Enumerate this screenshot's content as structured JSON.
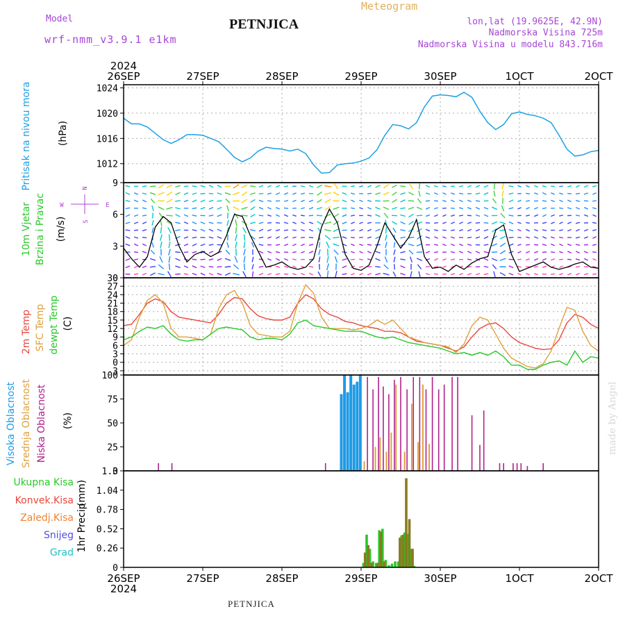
{
  "header": {
    "model_label": "Model",
    "model_name": "wrf-nmm_v3.9.1 e1km",
    "title": "PETNJICA",
    "subtitle": "Meteogram",
    "coords": "lon,lat (19.9625E, 42.9N)",
    "elevation": "Nadmorska Visina 725m",
    "model_elevation": "Nadmorska Visina u modelu 843.716m",
    "year": "2024"
  },
  "footer": {
    "station": "PETNJICA"
  },
  "credit": "made by Angel",
  "colors": {
    "pressure": "#1ca0e6",
    "temp2m": "#e8463c",
    "sfc": "#e0a03c",
    "dewpt": "#28c828",
    "high": "#1e9be6",
    "mid": "#e0a03c",
    "low": "#b0208c",
    "total_precip": "#28c828",
    "conv_precip": "#e8463c",
    "frozen": "#f08030",
    "snow": "#5050e0",
    "hail": "#20c0c0",
    "label_magenta": "#a646d6",
    "wind_label": "#b040d0"
  },
  "chart_data": [
    {
      "type": "line",
      "panel": "pressure",
      "ylabel": "Pritisak na nivou mora",
      "unit": "(hPa)",
      "ylim": [
        1009,
        1024.5
      ],
      "yticks": [
        1012,
        1016,
        1020,
        1024
      ],
      "x_days": [
        "26SEP",
        "27SEP",
        "28SEP",
        "29SEP",
        "30SEP",
        "1OCT",
        "2OCT"
      ],
      "x_tick_labels": [
        "26SEP",
        "27SEP",
        "28SEP",
        "29SEP",
        "30SEP",
        "1OCT",
        "2OCT"
      ],
      "series": [
        {
          "color_key": "pressure",
          "x": [
            0,
            0.1,
            0.2,
            0.3,
            0.4,
            0.5,
            0.6,
            0.7,
            0.8,
            0.9,
            1.0,
            1.1,
            1.2,
            1.3,
            1.4,
            1.5,
            1.6,
            1.7,
            1.8,
            1.9,
            2.0,
            2.1,
            2.2,
            2.3,
            2.4,
            2.5,
            2.6,
            2.7,
            2.8,
            2.9,
            3.0,
            3.1,
            3.2,
            3.3,
            3.4,
            3.5,
            3.6,
            3.7,
            3.8,
            3.9,
            4.0,
            4.1,
            4.2,
            4.3,
            4.4,
            4.5,
            4.6,
            4.7,
            4.8,
            4.9,
            5.0,
            5.1,
            5.2,
            5.3,
            5.4,
            5.5,
            5.6,
            5.7,
            5.8,
            5.9,
            6.0
          ],
          "values": [
            1019.2,
            1018.3,
            1018.3,
            1017.8,
            1016.8,
            1015.8,
            1015.2,
            1015.8,
            1016.6,
            1016.6,
            1016.5,
            1016.0,
            1015.5,
            1014.3,
            1013.0,
            1012.3,
            1012.9,
            1014.0,
            1014.6,
            1014.4,
            1014.3,
            1014.0,
            1014.3,
            1013.6,
            1011.8,
            1010.5,
            1010.6,
            1011.8,
            1012.0,
            1012.1,
            1012.4,
            1012.9,
            1014.2,
            1016.5,
            1018.2,
            1018.0,
            1017.5,
            1018.5,
            1021.0,
            1022.7,
            1022.9,
            1022.8,
            1022.6,
            1023.3,
            1022.5,
            1020.3,
            1018.5,
            1017.4,
            1018.2,
            1019.9,
            1020.2,
            1019.8,
            1019.6,
            1019.2,
            1018.5,
            1016.5,
            1014.3,
            1013.2,
            1013.4,
            1013.9,
            1014.1
          ]
        }
      ]
    },
    {
      "type": "line",
      "panel": "wind",
      "ylabel": [
        "10m Vjetar",
        "Brzina i Pravac"
      ],
      "unit": "(m/s)",
      "ylim": [
        0,
        9
      ],
      "yticks": [
        0,
        3,
        6,
        9
      ],
      "compass": {
        "n": "N",
        "s": "S",
        "e": "E",
        "w": "W"
      },
      "series": [
        {
          "color_key": "wind_speed",
          "x": [
            0,
            0.1,
            0.2,
            0.3,
            0.4,
            0.5,
            0.6,
            0.7,
            0.8,
            0.9,
            1.0,
            1.1,
            1.2,
            1.3,
            1.4,
            1.5,
            1.6,
            1.7,
            1.8,
            1.9,
            2.0,
            2.1,
            2.2,
            2.3,
            2.4,
            2.5,
            2.6,
            2.7,
            2.8,
            2.9,
            3.0,
            3.1,
            3.2,
            3.3,
            3.4,
            3.5,
            3.6,
            3.7,
            3.8,
            3.9,
            4.0,
            4.1,
            4.2,
            4.3,
            4.4,
            4.5,
            4.6,
            4.7,
            4.8,
            4.9,
            5.0,
            5.1,
            5.2,
            5.3,
            5.4,
            5.5,
            5.6,
            5.7,
            5.8,
            5.9,
            6.0
          ],
          "values": [
            2.8,
            1.8,
            1.0,
            2.0,
            4.8,
            5.8,
            5.2,
            3.0,
            1.5,
            2.2,
            2.5,
            2.0,
            2.4,
            4.0,
            6.0,
            5.8,
            4.0,
            2.5,
            1.0,
            1.2,
            1.5,
            1.0,
            0.8,
            1.0,
            1.8,
            4.8,
            6.5,
            5.2,
            2.2,
            0.9,
            0.7,
            1.2,
            3.0,
            5.2,
            4.0,
            2.8,
            3.8,
            5.5,
            2.0,
            0.9,
            1.0,
            0.6,
            1.2,
            0.8,
            1.4,
            1.8,
            2.0,
            4.5,
            5.0,
            2.2,
            0.6,
            0.9,
            1.2,
            1.5,
            1.0,
            0.8,
            1.0,
            1.3,
            1.5,
            1.0,
            0.9
          ]
        }
      ]
    },
    {
      "type": "line",
      "panel": "temperature",
      "ylabel": [
        "2m Temp",
        "SFC Temp",
        "dewpt Temp"
      ],
      "unit": "(C)",
      "ylim": [
        -4.5,
        30
      ],
      "yticks": [
        -3,
        0,
        3,
        6,
        9,
        12,
        15,
        18,
        21,
        24,
        27,
        30
      ],
      "series": [
        {
          "name": "2m Temp",
          "color_key": "temp2m",
          "x": [
            0,
            0.1,
            0.2,
            0.3,
            0.4,
            0.5,
            0.6,
            0.7,
            0.8,
            0.9,
            1.0,
            1.1,
            1.2,
            1.3,
            1.4,
            1.5,
            1.6,
            1.7,
            1.8,
            1.9,
            2.0,
            2.1,
            2.2,
            2.3,
            2.4,
            2.5,
            2.6,
            2.7,
            2.8,
            2.9,
            3.0,
            3.1,
            3.2,
            3.3,
            3.4,
            3.5,
            3.6,
            3.7,
            3.8,
            3.9,
            4.0,
            4.1,
            4.2,
            4.3,
            4.4,
            4.5,
            4.6,
            4.7,
            4.8,
            4.9,
            5.0,
            5.1,
            5.2,
            5.3,
            5.4,
            5.5,
            5.6,
            5.7,
            5.8,
            5.9,
            6.0
          ],
          "values": [
            13,
            13.5,
            17,
            21,
            22.5,
            21.5,
            18,
            16,
            15.5,
            15,
            14.5,
            14,
            17,
            21,
            23,
            22.5,
            19,
            16.5,
            15.5,
            15,
            15,
            16,
            21,
            24,
            22.5,
            19,
            17,
            16,
            14.5,
            14,
            13,
            12.5,
            12,
            11,
            11,
            10.5,
            9,
            7.5,
            7,
            6.5,
            6,
            5,
            4,
            5.5,
            9,
            12,
            13.5,
            14,
            12,
            9,
            7,
            6,
            5,
            4.5,
            4.8,
            8,
            14,
            17,
            16,
            13.5,
            12
          ]
        },
        {
          "name": "SFC Temp",
          "color_key": "sfc",
          "x": [
            0,
            0.1,
            0.2,
            0.3,
            0.4,
            0.5,
            0.6,
            0.7,
            0.8,
            0.9,
            1.0,
            1.1,
            1.2,
            1.3,
            1.4,
            1.5,
            1.6,
            1.7,
            1.8,
            1.9,
            2.0,
            2.1,
            2.2,
            2.3,
            2.4,
            2.5,
            2.6,
            2.7,
            2.8,
            2.9,
            3.0,
            3.1,
            3.2,
            3.3,
            3.4,
            3.5,
            3.6,
            3.7,
            3.8,
            3.9,
            4.0,
            4.1,
            4.2,
            4.3,
            4.4,
            4.5,
            4.6,
            4.7,
            4.8,
            4.9,
            5.0,
            5.1,
            5.2,
            5.3,
            5.4,
            5.5,
            5.6,
            5.7,
            5.8,
            5.9,
            6.0
          ],
          "values": [
            6,
            8,
            16,
            22,
            24,
            21,
            12,
            9,
            9,
            8.5,
            8,
            10,
            19,
            24,
            25.5,
            21,
            13,
            10,
            9.5,
            9,
            9,
            11,
            21,
            27.5,
            24.5,
            16,
            12,
            12,
            12,
            11.5,
            12,
            13,
            15,
            13.5,
            15,
            12,
            9,
            8,
            7,
            6.5,
            6,
            5.5,
            3.5,
            6.5,
            13,
            16,
            15,
            10,
            5,
            1.5,
            0,
            -1.5,
            -2,
            -0.5,
            4,
            12,
            19.5,
            18.5,
            11,
            6,
            4
          ]
        },
        {
          "name": "dewpt Temp",
          "color_key": "dewpt",
          "x": [
            0,
            0.1,
            0.2,
            0.3,
            0.4,
            0.5,
            0.6,
            0.7,
            0.8,
            0.9,
            1.0,
            1.1,
            1.2,
            1.3,
            1.4,
            1.5,
            1.6,
            1.7,
            1.8,
            1.9,
            2.0,
            2.1,
            2.2,
            2.3,
            2.4,
            2.5,
            2.6,
            2.7,
            2.8,
            2.9,
            3.0,
            3.1,
            3.2,
            3.3,
            3.4,
            3.5,
            3.6,
            3.7,
            3.8,
            3.9,
            4.0,
            4.1,
            4.2,
            4.3,
            4.4,
            4.5,
            4.6,
            4.7,
            4.8,
            4.9,
            5.0,
            5.1,
            5.2,
            5.3,
            5.4,
            5.5,
            5.6,
            5.7,
            5.8,
            5.9,
            6.0
          ],
          "values": [
            8,
            9,
            11,
            12.5,
            12,
            13,
            10,
            8,
            7.5,
            8,
            8,
            10,
            12,
            12.5,
            12,
            11.5,
            9,
            8,
            8.5,
            8.5,
            8,
            10,
            14,
            15,
            13,
            12.5,
            12,
            11.5,
            11,
            11,
            11,
            10,
            9,
            8.5,
            9,
            8,
            7,
            6.5,
            6,
            5.5,
            5,
            4,
            3,
            3.5,
            2.5,
            3.5,
            2.5,
            4,
            2,
            -1,
            -1,
            -2.5,
            -2.5,
            -1,
            0,
            0.5,
            -1,
            4,
            0,
            2,
            1.5
          ]
        }
      ]
    },
    {
      "type": "bar",
      "panel": "clouds",
      "ylabel": [
        "Visoka Oblacnost",
        "Srednja Oblacnost",
        "Niska Oblacnost"
      ],
      "unit": "(%)",
      "ylim": [
        0,
        100
      ],
      "yticks": [
        0,
        25,
        50,
        75,
        100
      ],
      "series": [
        {
          "name": "Visoka Oblacnost",
          "color_key": "high",
          "x": [
            2.75,
            2.79,
            2.83,
            2.87,
            2.91,
            2.95,
            2.99
          ],
          "values": [
            80,
            100,
            82,
            100,
            90,
            93,
            100
          ]
        },
        {
          "name": "Srednja Oblacnost",
          "color_key": "mid",
          "x": [
            3.04,
            3.18,
            3.24,
            3.32,
            3.38,
            3.44,
            3.55,
            3.64,
            3.72,
            3.78,
            3.86
          ],
          "values": [
            10,
            25,
            35,
            20,
            40,
            90,
            20,
            70,
            30,
            90,
            28
          ]
        },
        {
          "name": "Niska Oblacnost",
          "color_key": "low",
          "x": [
            0.44,
            0.61,
            2.55,
            3.08,
            3.15,
            3.22,
            3.28,
            3.35,
            3.42,
            3.5,
            3.58,
            3.66,
            3.74,
            3.82,
            3.9,
            3.98,
            4.05,
            4.15,
            4.22,
            4.4,
            4.5,
            4.55,
            4.75,
            4.8,
            4.92,
            4.97,
            5.02,
            5.1,
            5.3
          ],
          "values": [
            8,
            8,
            8,
            98,
            85,
            98,
            88,
            80,
            95,
            98,
            85,
            98,
            98,
            85,
            98,
            85,
            90,
            98,
            98,
            58,
            27,
            63,
            8,
            8,
            8,
            8,
            8,
            5,
            8
          ]
        }
      ]
    },
    {
      "type": "bar",
      "panel": "precip",
      "ylabel": "1hr Precip",
      "unit": "(mm)",
      "legend": [
        "Ukupna Kisa",
        "Konvek.Kisa",
        "Zaledj.Kisa",
        "Snijeg",
        "Grad"
      ],
      "ylim": [
        0,
        1.3
      ],
      "yticks": [
        0,
        0.26,
        0.52,
        0.78,
        1.04,
        1.3
      ],
      "series": [
        {
          "name": "Ukupna Kisa",
          "color_key": "total_precip",
          "x": [
            3.03,
            3.07,
            3.11,
            3.15,
            3.19,
            3.23,
            3.27,
            3.31,
            3.35,
            3.39,
            3.43,
            3.47,
            3.51,
            3.55,
            3.59,
            3.63,
            3.67
          ],
          "values": [
            0.06,
            0.44,
            0.25,
            0.08,
            0.06,
            0.5,
            0.52,
            0.1,
            0.03,
            0.05,
            0.08,
            0.08,
            0.43,
            0.47,
            0.45,
            0.25,
            0.02
          ]
        },
        {
          "name": "Konvek.Kisa",
          "color_key": "conv_precip",
          "x": [
            3.05,
            3.09,
            3.13,
            3.21,
            3.25,
            3.29,
            3.49,
            3.53,
            3.57,
            3.61,
            3.65
          ],
          "values": [
            0.2,
            0.3,
            0.06,
            0.06,
            0.48,
            0.08,
            0.4,
            0.44,
            1.2,
            0.65,
            0.25
          ]
        }
      ]
    }
  ],
  "axis_labels": {
    "pressure_name": "Pritisak na nivou mora",
    "pressure_unit": "(hPa)",
    "wind_name1": "10m Vjetar",
    "wind_name2": "Brzina i Pravac",
    "wind_unit": "(m/s)",
    "temp_name1": "2m Temp",
    "temp_name2": "SFC Temp",
    "temp_name3": "dewpt Temp",
    "temp_unit": "(C)",
    "cloud_name1": "Visoka Oblacnost",
    "cloud_name2": "Srednja Oblacnost",
    "cloud_name3": "Niska Oblacnost",
    "cloud_unit": "(%)",
    "precip_name": "1hr Precip",
    "precip_unit": "(mm)"
  }
}
